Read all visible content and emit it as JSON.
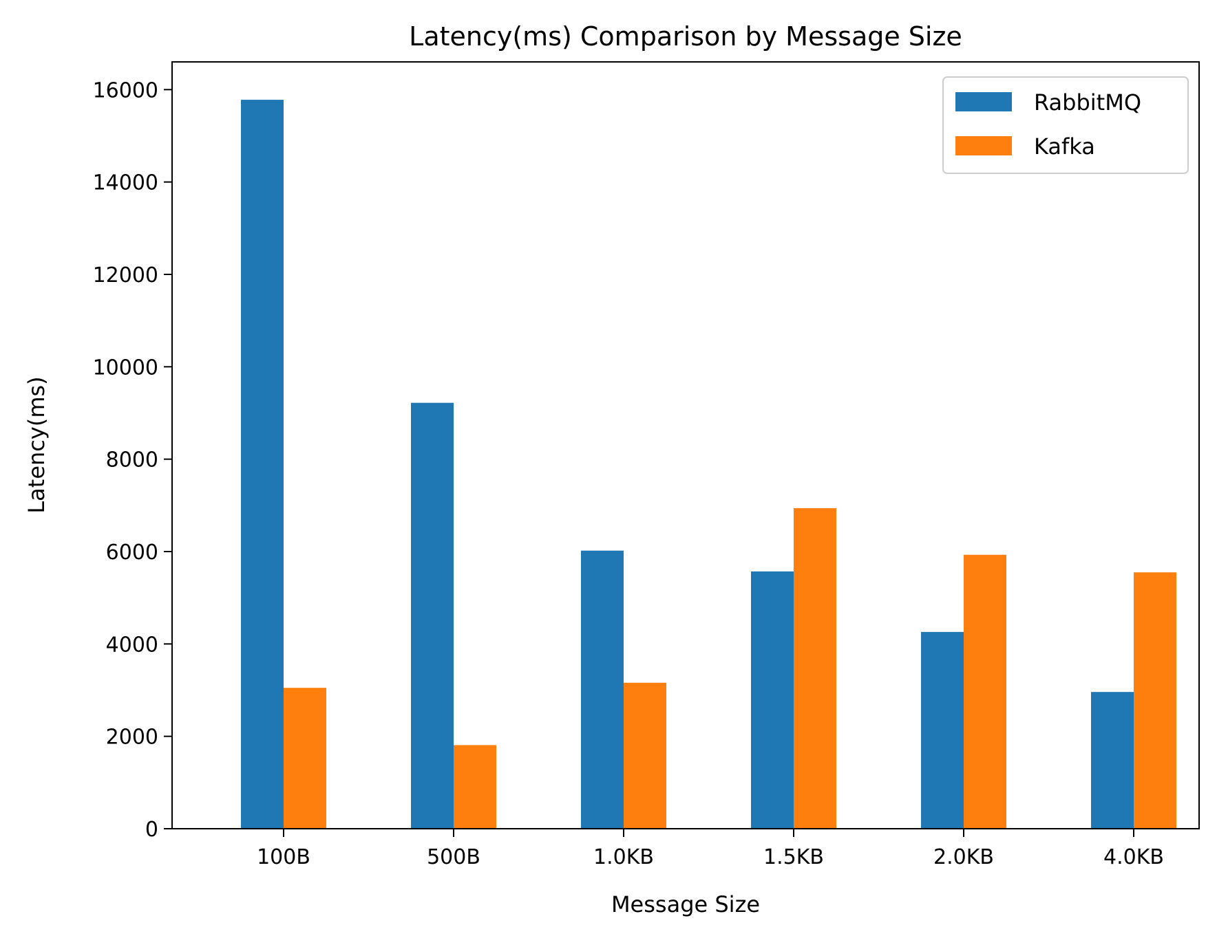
{
  "chart_data": {
    "type": "bar",
    "title": "Latency(ms) Comparison by Message Size",
    "xlabel": "Message Size",
    "ylabel": "Latency(ms)",
    "categories": [
      "100B",
      "500B",
      "1.0KB",
      "1.5KB",
      "2.0KB",
      "4.0KB"
    ],
    "series": [
      {
        "name": "RabbitMQ",
        "color": "#1f77b4",
        "values": [
          15780,
          9220,
          6020,
          5570,
          4260,
          2960
        ]
      },
      {
        "name": "Kafka",
        "color": "#ff7f0e",
        "values": [
          3050,
          1810,
          3160,
          6940,
          5930,
          5550
        ]
      }
    ],
    "ylim": [
      0,
      16600
    ],
    "yticks": [
      0,
      2000,
      4000,
      6000,
      8000,
      10000,
      12000,
      14000,
      16000
    ],
    "grid": false,
    "legend_position": "top-right"
  }
}
